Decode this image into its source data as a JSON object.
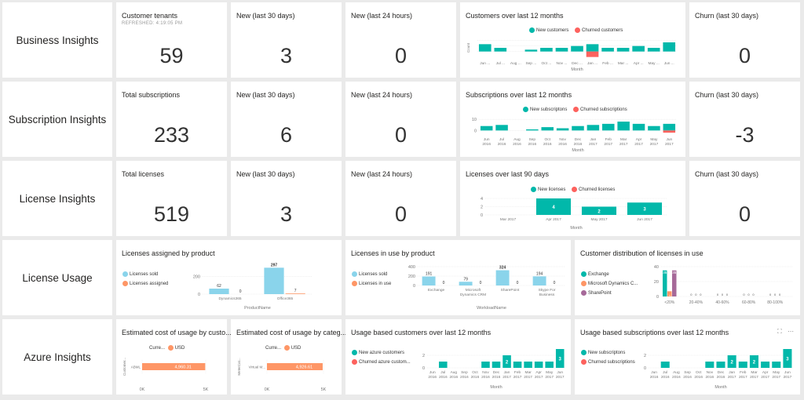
{
  "colors": {
    "teal": "#01B8AA",
    "red": "#FD625E",
    "blue": "#8AD4EB",
    "orange": "#FE9666",
    "purple": "#A66999",
    "grid": "#e6e6e6",
    "axis": "#777777"
  },
  "rows": {
    "business": {
      "label": "Business Insights",
      "tenants": {
        "title": "Customer tenants",
        "sub": "REFRESHED: 4:19:05 PM",
        "value": "59"
      },
      "new30": {
        "title": "New (last 30 days)",
        "value": "3"
      },
      "new24": {
        "title": "New (last 24 hours)",
        "value": "0"
      },
      "chart": {
        "title": "Customers over last 12 months",
        "legend_new": "New customers",
        "legend_churn": "Churned customers"
      },
      "churn": {
        "title": "Churn (last 30 days)",
        "value": "0"
      }
    },
    "subscription": {
      "label": "Subscription Insights",
      "total": {
        "title": "Total subscriptions",
        "value": "233"
      },
      "new30": {
        "title": "New (last 30 days)",
        "value": "6"
      },
      "new24": {
        "title": "New (last 24 hours)",
        "value": "0"
      },
      "chart": {
        "title": "Subscriptions over last 12 months",
        "legend_new": "New subscriptons",
        "legend_churn": "Churned subscriptions"
      },
      "churn": {
        "title": "Churn (last 30 days)",
        "value": "-3"
      }
    },
    "license": {
      "label": "License Insights",
      "total": {
        "title": "Total licenses",
        "value": "519"
      },
      "new30": {
        "title": "New (last 30 days)",
        "value": "3"
      },
      "new24": {
        "title": "New (last 24 hours)",
        "value": "0"
      },
      "chart": {
        "title": "Licenses over last 90 days",
        "legend_new": "New licenses",
        "legend_churn": "Churned licenses"
      },
      "churn": {
        "title": "Churn (last 30 days)",
        "value": "0"
      }
    },
    "usage": {
      "label": "License Usage",
      "assigned": {
        "title": "Licenses assigned by product",
        "legend_sold": "Licenses sold",
        "legend_assigned": "Licenses assigned"
      },
      "inuse": {
        "title": "Licenses in use by product",
        "legend_sold": "Licenses sold",
        "legend_inuse": "Licenses in use"
      },
      "distribution": {
        "title": "Customer distribution of licenses in use",
        "legend": [
          "Exchange",
          "Microsoft Dynamics C...",
          "SharePoint"
        ]
      }
    },
    "azure": {
      "label": "Azure Insights",
      "cost_customer": {
        "title": "Estimated cost of usage by custo...",
        "currency_label": "Curre...",
        "currency": "USD"
      },
      "cost_category": {
        "title": "Estimated cost of usage by categ...",
        "currency_label": "Curre...",
        "currency": "USD"
      },
      "usage_customers": {
        "title": "Usage based customers over last 12 months",
        "legend_new": "New azure customers",
        "legend_churn": "Churned azure custom..."
      },
      "usage_subscriptions": {
        "title": "Usage based subscriptions over last 12 months",
        "legend_new": "New subscriptons",
        "legend_churn": "Churned subscriptions"
      }
    }
  },
  "chart_data": [
    {
      "id": "customers12",
      "type": "bar",
      "title": "Customers over last 12 months",
      "xlabel": "Month",
      "categories": [
        "Jun 2016",
        "Jul 2016",
        "Aug 2016",
        "Sep 2016",
        "Oct 2016",
        "Nov 2016",
        "Dec 2016",
        "Jan 2017",
        "Feb 2017",
        "Mar 2017",
        "Apr 2017",
        "May 2017",
        "Jun 2017"
      ],
      "tick_labels": [
        "Jun ...",
        "Jul ...",
        "Aug ...",
        "Sep ...",
        "Oct ...",
        "Nov ...",
        "Dec ...",
        "Jan ...",
        "Feb ...",
        "Mar ...",
        "Apr ...",
        "May ...",
        "Jun ..."
      ],
      "ylabel": "Count",
      "series": [
        {
          "name": "New customers",
          "values": [
            4,
            2,
            0,
            1,
            2,
            2,
            3,
            4,
            2,
            2,
            3,
            2,
            5
          ]
        },
        {
          "name": "Churned customers",
          "values": [
            0,
            0,
            0,
            0,
            0,
            0,
            0,
            -3,
            0,
            0,
            0,
            0,
            0
          ]
        }
      ],
      "ylim": [
        -4,
        8
      ]
    },
    {
      "id": "subs12",
      "type": "bar",
      "title": "Subscriptions over last 12 months",
      "xlabel": "Month",
      "categories": [
        "Jun 2016",
        "Jul 2016",
        "Aug 2016",
        "Sep 2016",
        "Oct 2016",
        "Nov 2016",
        "Dec 2016",
        "Jan 2017",
        "Feb 2017",
        "Mar 2017",
        "Apr 2017",
        "May 2017",
        "Jun 2017"
      ],
      "tick_labels": [
        "Jun\n2016",
        "Jul\n2016",
        "Aug\n2016",
        "Sep\n2016",
        "Oct\n2016",
        "Nov\n2016",
        "Dec\n2016",
        "Jan\n2017",
        "Feb\n2017",
        "Mar\n2017",
        "Apr\n2017",
        "May\n2017",
        "Jun\n2017"
      ],
      "yticks": [
        "10",
        "0"
      ],
      "series": [
        {
          "name": "New subscriptons",
          "values": [
            4,
            5,
            0,
            1,
            3,
            2,
            4,
            5,
            6,
            8,
            6,
            4,
            6
          ]
        },
        {
          "name": "Churned subscriptions",
          "values": [
            0,
            0,
            0,
            0,
            0,
            0,
            0,
            0,
            0,
            0,
            0,
            0,
            -2
          ]
        }
      ],
      "ylim": [
        -4,
        13
      ]
    },
    {
      "id": "licenses90",
      "type": "bar",
      "title": "Licenses over last 90 days",
      "xlabel": "Month",
      "categories": [
        "Mar 2017",
        "Apr 2017",
        "May 2017",
        "Jun 2017"
      ],
      "yticks": [
        "4",
        "2",
        "0"
      ],
      "series": [
        {
          "name": "New licenses",
          "values": [
            0,
            4,
            2,
            3
          ],
          "labels": [
            "",
            "4",
            "2",
            "3"
          ]
        }
      ],
      "ylim": [
        0,
        4
      ]
    },
    {
      "id": "assigned",
      "type": "bar",
      "title": "Licenses assigned by product",
      "xlabel": "ProductName",
      "categories": [
        "Dynamics365",
        "Office365"
      ],
      "yticks": [
        "200",
        "0"
      ],
      "series": [
        {
          "name": "Licenses sold",
          "values": [
            62,
            297
          ]
        },
        {
          "name": "Licenses assigned",
          "values": [
            0,
            7
          ]
        }
      ],
      "ylim": [
        0,
        300
      ]
    },
    {
      "id": "inuse",
      "type": "bar",
      "title": "Licenses in use by product",
      "xlabel": "WorkloadName",
      "categories": [
        "Exchange",
        "Microsoft Dynamics CRM",
        "SharePoint",
        "Skype For Business"
      ],
      "yticks": [
        "400",
        "200",
        "0"
      ],
      "series": [
        {
          "name": "Licenses sold",
          "values": [
            191,
            79,
            324,
            194
          ]
        },
        {
          "name": "Licenses in use",
          "values": [
            0,
            0,
            0,
            0
          ]
        }
      ],
      "ylim": [
        0,
        400
      ]
    },
    {
      "id": "distribution",
      "type": "bar",
      "title": "Customer distribution of licenses in use",
      "categories": [
        "<20%",
        "20-40%",
        "40-60%",
        "60-80%",
        "80-100%"
      ],
      "yticks": [
        "40",
        "20",
        "0"
      ],
      "series": [
        {
          "name": "Exchange",
          "values": [
            35,
            0,
            0,
            0,
            0
          ]
        },
        {
          "name": "Microsoft Dynamics C...",
          "values": [
            7,
            0,
            0,
            0,
            0
          ]
        },
        {
          "name": "SharePoint",
          "values": [
            35,
            0,
            0,
            0,
            0
          ]
        }
      ],
      "bar_labels": [
        "35",
        "7",
        "35"
      ],
      "ylim": [
        0,
        40
      ]
    },
    {
      "id": "cost_customer",
      "type": "bar",
      "title": "Estimated cost of usage by customer",
      "ylabel": "Customer...",
      "category": "ABML",
      "value": 4960.31,
      "value_label": "4,960.31",
      "xticks": [
        "0K",
        "5K"
      ],
      "xlim": [
        0,
        5000
      ]
    },
    {
      "id": "cost_category",
      "type": "bar",
      "title": "Estimated cost of usage by category",
      "ylabel": "MeterCat...",
      "category": "Virtual M...",
      "value": 4926.61,
      "value_label": "4,926.61",
      "xticks": [
        "0K",
        "5K"
      ],
      "xlim": [
        0,
        5000
      ]
    },
    {
      "id": "azure_customers",
      "type": "bar",
      "title": "Usage based customers over last 12 months",
      "xlabel": "Month",
      "categories": [
        "Jun 2016",
        "Jul 2016",
        "Aug 2016",
        "Sep 2016",
        "Oct 2016",
        "Nov 2016",
        "Dec 2016",
        "Jan 2017",
        "Feb 2017",
        "Mar 2017",
        "Apr 2017",
        "May 2017",
        "Jun 2017"
      ],
      "tick_labels": [
        "Jun\n2016",
        "Jul\n2016",
        "Aug\n2016",
        "Sep\n2016",
        "Oct\n2016",
        "Nov\n2016",
        "Dec\n2016",
        "Jan\n2017",
        "Feb\n2017",
        "Mar\n2017",
        "Apr\n2017",
        "May\n2017",
        "Jun\n2017"
      ],
      "yticks": [
        "2",
        "0"
      ],
      "series": [
        {
          "name": "New azure customers",
          "values": [
            0,
            1,
            0,
            0,
            0,
            1,
            1,
            2,
            1,
            1,
            1,
            1,
            3
          ],
          "labels": [
            "",
            "",
            "",
            "",
            "",
            "",
            "",
            "2",
            "",
            "",
            "",
            "",
            "3"
          ]
        }
      ],
      "ylim": [
        0,
        3
      ]
    },
    {
      "id": "azure_subs",
      "type": "bar",
      "title": "Usage based subscriptions over last 12 months",
      "xlabel": "Month",
      "categories": [
        "Jun 2016",
        "Jul 2016",
        "Aug 2016",
        "Sep 2016",
        "Oct 2016",
        "Nov 2016",
        "Dec 2016",
        "Jan 2017",
        "Feb 2017",
        "Mar 2017",
        "Apr 2017",
        "May 2017",
        "Jun 2017"
      ],
      "tick_labels": [
        "Jun\n2016",
        "Jul\n2016",
        "Aug\n2016",
        "Sep\n2016",
        "Oct\n2016",
        "Nov\n2016",
        "Dec\n2016",
        "Jan\n2017",
        "Feb\n2017",
        "Mar\n2017",
        "Apr\n2017",
        "May\n2017",
        "Jun\n2017"
      ],
      "yticks": [
        "2",
        "0"
      ],
      "series": [
        {
          "name": "New subscriptons",
          "values": [
            0,
            1,
            0,
            0,
            0,
            1,
            1,
            2,
            1,
            2,
            1,
            1,
            3
          ],
          "labels": [
            "",
            "",
            "",
            "",
            "",
            "",
            "",
            "2",
            "",
            "2",
            "",
            "",
            "3"
          ]
        }
      ],
      "ylim": [
        0,
        3
      ]
    }
  ]
}
